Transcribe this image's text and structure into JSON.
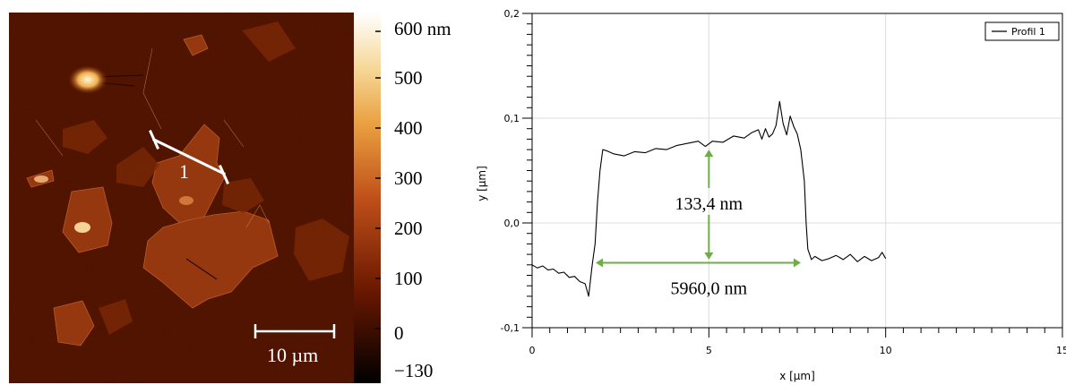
{
  "afm_image": {
    "colorbar_labels": [
      "600 nm",
      "500",
      "400",
      "300",
      "200",
      "100",
      "0",
      "−130"
    ],
    "profile_line_label": "1",
    "scale_bar_label": "10 µm"
  },
  "chart_data": {
    "type": "line",
    "title": "",
    "xlabel": "x [µm]",
    "ylabel": "y [µm]",
    "xlim": [
      0,
      15
    ],
    "ylim": [
      -0.1,
      0.2
    ],
    "x_ticks": [
      0,
      5,
      10,
      15
    ],
    "x_tick_labels": [
      "0",
      "5",
      "10",
      "15"
    ],
    "y_ticks": [
      -0.1,
      0.0,
      0.1,
      0.2
    ],
    "y_tick_labels": [
      "-0,1",
      "0,0",
      "0,1",
      "0,2"
    ],
    "grid": true,
    "legend_position": "top-right",
    "series": [
      {
        "name": "Profil 1",
        "color": "#000000",
        "x": [
          0,
          0.15,
          0.3,
          0.45,
          0.6,
          0.75,
          0.9,
          1.05,
          1.2,
          1.35,
          1.5,
          1.6,
          1.7,
          1.78,
          1.85,
          1.92,
          2.0,
          2.1,
          2.3,
          2.6,
          2.9,
          3.2,
          3.5,
          3.8,
          4.1,
          4.4,
          4.7,
          4.9,
          5.1,
          5.4,
          5.7,
          6.0,
          6.2,
          6.4,
          6.5,
          6.6,
          6.7,
          6.8,
          6.9,
          7.0,
          7.1,
          7.2,
          7.3,
          7.4,
          7.5,
          7.6,
          7.7,
          7.75,
          7.8,
          7.85,
          7.9,
          8.0,
          8.2,
          8.4,
          8.6,
          8.8,
          9.0,
          9.2,
          9.4,
          9.6,
          9.8,
          9.9,
          10.0
        ],
        "y": [
          -0.04,
          -0.043,
          -0.041,
          -0.045,
          -0.044,
          -0.048,
          -0.047,
          -0.052,
          -0.051,
          -0.056,
          -0.058,
          -0.07,
          -0.04,
          -0.02,
          0.02,
          0.05,
          0.07,
          0.069,
          0.066,
          0.064,
          0.068,
          0.067,
          0.071,
          0.07,
          0.074,
          0.076,
          0.078,
          0.073,
          0.078,
          0.077,
          0.083,
          0.081,
          0.086,
          0.089,
          0.08,
          0.09,
          0.082,
          0.085,
          0.093,
          0.116,
          0.095,
          0.084,
          0.102,
          0.092,
          0.085,
          0.07,
          0.04,
          0.0,
          -0.025,
          -0.03,
          -0.035,
          -0.032,
          -0.036,
          -0.034,
          -0.031,
          -0.035,
          -0.03,
          -0.037,
          -0.032,
          -0.036,
          -0.033,
          -0.028,
          -0.034
        ]
      }
    ],
    "annotations": [
      {
        "text": "133,4 nm",
        "kind": "vertical-double-arrow",
        "x": 5,
        "y_from": -0.035,
        "y_to": 0.07,
        "text_x": 5,
        "text_y": 0.018
      },
      {
        "text": "5960,0 nm",
        "kind": "horizontal-double-arrow",
        "y": -0.038,
        "x_from": 1.8,
        "x_to": 7.6,
        "text_x": 5,
        "text_y": -0.063
      }
    ],
    "annotation_color": "#70ad47"
  }
}
